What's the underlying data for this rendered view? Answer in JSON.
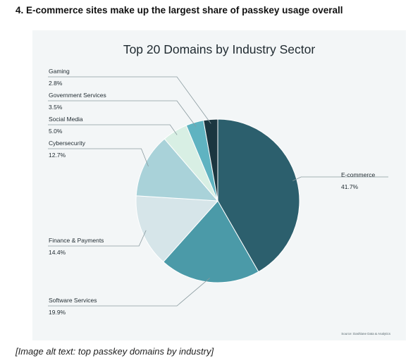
{
  "heading": "4. E-commerce sites make up the largest share of passkey usage overall",
  "alt_text": "[Image alt text: top passkey domains by industry]",
  "source": "Source: Dashlane Data & Analytics",
  "chart_data": {
    "type": "pie",
    "title": "Top 20 Domains by Industry Sector",
    "slices": [
      {
        "label": "E-commerce",
        "value": 41.7,
        "display": "41.7%",
        "color": "#2c5f6d"
      },
      {
        "label": "Software Services",
        "value": 19.9,
        "display": "19.9%",
        "color": "#4b9aa8"
      },
      {
        "label": "Finance & Payments",
        "value": 14.4,
        "display": "14.4%",
        "color": "#d6e5e9"
      },
      {
        "label": "Cybersecurity",
        "value": 12.7,
        "display": "12.7%",
        "color": "#a9d2d9"
      },
      {
        "label": "Social Media",
        "value": 5.0,
        "display": "5.0%",
        "color": "#d8efe4"
      },
      {
        "label": "Government Services",
        "value": 3.5,
        "display": "3.5%",
        "color": "#5fb3c1"
      },
      {
        "label": "Gaming",
        "value": 2.8,
        "display": "2.8%",
        "color": "#1b3640"
      }
    ],
    "legend": "callout labels"
  }
}
